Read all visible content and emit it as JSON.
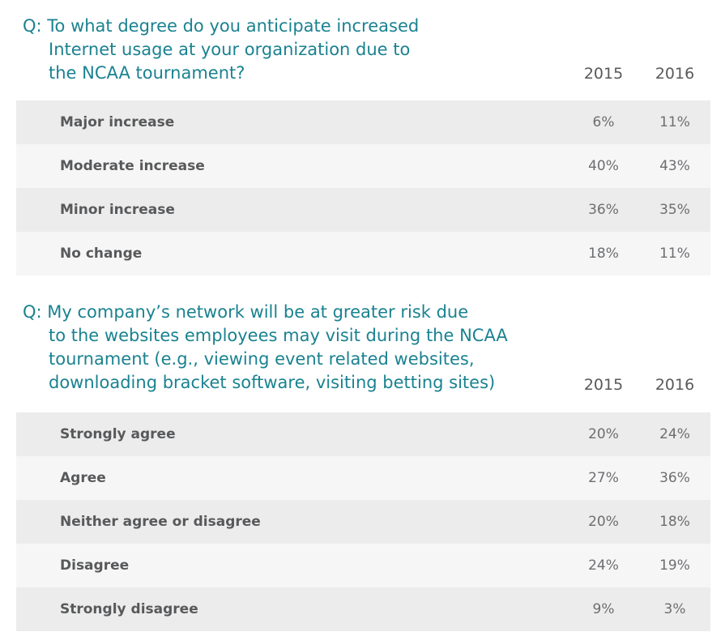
{
  "section1": {
    "question": {
      "line1": "Q: To what degree do you anticipate increased",
      "line2": "Internet usage at your organization due to",
      "line3": "the NCAA tournament?"
    },
    "years": [
      "2015",
      "2016"
    ],
    "rows": [
      {
        "label": "Major increase",
        "v2015": "6%",
        "v2016": "11%"
      },
      {
        "label": "Moderate increase",
        "v2015": "40%",
        "v2016": "43%"
      },
      {
        "label": "Minor increase",
        "v2015": "36%",
        "v2016": "35%"
      },
      {
        "label": "No change",
        "v2015": "18%",
        "v2016": "11%"
      }
    ]
  },
  "section2": {
    "question": {
      "line1": "Q: My company’s network will be at greater risk due",
      "line2": "to the websites employees may visit during the NCAA",
      "line3": "tournament (e.g., viewing event related websites,",
      "line4": "downloading bracket software, visiting betting sites)"
    },
    "years": [
      "2015",
      "2016"
    ],
    "rows": [
      {
        "label": "Strongly agree",
        "v2015": "20%",
        "v2016": "24%"
      },
      {
        "label": "Agree",
        "v2015": "27%",
        "v2016": "36%"
      },
      {
        "label": "Neither agree or disagree",
        "v2015": "20%",
        "v2016": "18%"
      },
      {
        "label": "Disagree",
        "v2015": "24%",
        "v2016": "19%"
      },
      {
        "label": "Strongly disagree",
        "v2015": "9%",
        "v2016": "3%"
      }
    ]
  },
  "colors": {
    "question_text": "#1a8290",
    "label_text": "#58595b",
    "row_shade_dark": "#ececec",
    "row_shade_light": "#f6f6f6"
  }
}
